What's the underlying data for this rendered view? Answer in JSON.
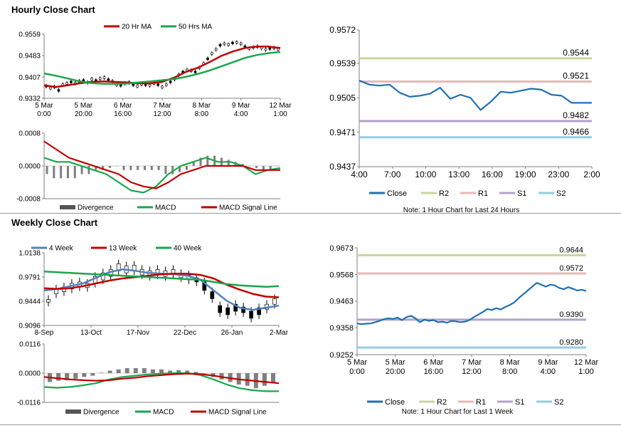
{
  "sections": {
    "hourly_title": "Hourly Close Chart",
    "weekly_title": "Weekly Close Chart"
  },
  "chart_data": [
    {
      "id": "hourly-price",
      "type": "line",
      "legend": [
        "20 Hr MA",
        "50 Hrs MA"
      ],
      "legend_colors": [
        "#c00000",
        "#19a64c"
      ],
      "ylim": [
        0.9332,
        0.9559
      ],
      "y_ticks": [
        "0.9559",
        "0.9483",
        "0.9407",
        "0.9332"
      ],
      "x_ticks": [
        [
          "5 Mar",
          "0:00"
        ],
        [
          "5 Mar",
          "20:00"
        ],
        [
          "6 Mar",
          "16:00"
        ],
        [
          "7 Mar",
          "12:00"
        ],
        [
          "8 Mar",
          "8:00"
        ],
        [
          "9 Mar",
          "4:00"
        ],
        [
          "12 Mar",
          "1:00"
        ]
      ],
      "candles": [
        0.9375,
        0.9368,
        0.9372,
        0.936,
        0.938,
        0.9385,
        0.939,
        0.9385,
        0.9392,
        0.9395,
        0.9388,
        0.94,
        0.9395,
        0.9402,
        0.9405,
        0.9398,
        0.9392,
        0.938,
        0.9378,
        0.9385,
        0.9388,
        0.938,
        0.9375,
        0.9382,
        0.938,
        0.9378,
        0.9385,
        0.938,
        0.9372,
        0.938,
        0.939,
        0.94,
        0.9415,
        0.9425,
        0.9432,
        0.943,
        0.9425,
        0.944,
        0.9455,
        0.9472,
        0.949,
        0.9505,
        0.952,
        0.9525,
        0.9522,
        0.9528,
        0.953,
        0.9525,
        0.9515,
        0.9508,
        0.9512,
        0.9515,
        0.951,
        0.9505,
        0.9508,
        0.951,
        0.9505
      ],
      "series": [
        {
          "name": "20 Hr MA",
          "color": "#c00000",
          "values": [
            0.9378,
            0.9372,
            0.9378,
            0.9385,
            0.939,
            0.9392,
            0.939,
            0.9388,
            0.9385,
            0.9385,
            0.939,
            0.9405,
            0.9425,
            0.944,
            0.946,
            0.9482,
            0.9498,
            0.951,
            0.9515,
            0.9515,
            0.951
          ]
        },
        {
          "name": "50 Hrs MA",
          "color": "#19a64c",
          "values": [
            0.942,
            0.9412,
            0.9402,
            0.9392,
            0.9386,
            0.9383,
            0.9383,
            0.9384,
            0.9388,
            0.9392,
            0.9396,
            0.94,
            0.9408,
            0.9418,
            0.943,
            0.9445,
            0.946,
            0.9475,
            0.9485,
            0.9492,
            0.9496
          ]
        }
      ]
    },
    {
      "id": "hourly-macd",
      "type": "line",
      "ylim": [
        -0.0008,
        0.0008
      ],
      "y_ticks": [
        "0.0008",
        "0.0000",
        "-0.0008"
      ],
      "legend": [
        "Divergence",
        "MACD",
        "MACD Signal Line"
      ],
      "legend_colors": [
        "#555555",
        "#19a64c",
        "#c00000"
      ],
      "divergence": [
        -0.0002,
        -0.0003,
        -0.0003,
        -0.0003,
        -0.0003,
        -0.0002,
        -0.0002,
        -0.0001,
        -0.0001,
        -5e-05,
        0.0,
        -0.0001,
        -0.0001,
        -0.0001,
        -0.0001,
        -0.0001,
        -0.0001,
        -0.0002,
        -0.0002,
        -0.00015,
        -0.0001,
        0.0001,
        0.0002,
        0.00025,
        0.00025,
        0.0002,
        0.00015,
        0.0001,
        5e-05,
        0.0,
        -5e-05,
        -0.0001,
        -0.0001,
        0.0
      ],
      "series": [
        {
          "name": "MACD",
          "color": "#19a64c",
          "values": [
            0.0002,
            0.0001,
            0.0001,
            0.0,
            -0.0001,
            -0.0002,
            -0.0004,
            -0.0006,
            -0.00065,
            -0.0005,
            -0.0002,
            0.0,
            0.0001,
            0.0002,
            0.0001,
            0.0001,
            0.0,
            -0.0002,
            -0.0001,
            -5e-05
          ]
        },
        {
          "name": "MACD Signal Line",
          "color": "#c00000",
          "values": [
            0.0006,
            0.0004,
            0.0002,
            0.0001,
            0.0,
            -0.0001,
            -0.0002,
            -0.0004,
            -0.0005,
            -0.00055,
            -0.0004,
            -0.0002,
            -0.0001,
            0.0,
            0.0,
            0.0,
            0.0,
            -0.0001,
            -0.0001,
            -0.0001
          ]
        }
      ]
    },
    {
      "id": "hourly-close-24h",
      "type": "line",
      "ylim": [
        0.9437,
        0.9572
      ],
      "y_ticks": [
        "0.9572",
        "0.9539",
        "0.9505",
        "0.9471",
        "0.9437"
      ],
      "x_ticks": [
        "4:00",
        "7:00",
        "10:00",
        "13:00",
        "16:00",
        "19:00",
        "23:00",
        "2:00"
      ],
      "levels": [
        {
          "name": "R2",
          "value": 0.9544,
          "label": "0.9544",
          "color": "#c4d79b"
        },
        {
          "name": "R1",
          "value": 0.9521,
          "label": "0.9521",
          "color": "#e6b9b8"
        },
        {
          "name": "S1",
          "value": 0.9482,
          "label": "0.9482",
          "color": "#b3a2c7"
        },
        {
          "name": "S2",
          "value": 0.9466,
          "label": "0.9466",
          "color": "#93cddd"
        }
      ],
      "series": [
        {
          "name": "Close",
          "color": "#1f6fb4",
          "values": [
            0.9522,
            0.9518,
            0.9517,
            0.9518,
            0.951,
            0.9506,
            0.9507,
            0.9509,
            0.9515,
            0.9504,
            0.9508,
            0.9505,
            0.9493,
            0.9501,
            0.9511,
            0.951,
            0.9512,
            0.9514,
            0.9513,
            0.9508,
            0.9507,
            0.95,
            0.95,
            0.95
          ]
        }
      ],
      "legend": [
        "Close",
        "R2",
        "R1",
        "S1",
        "S2"
      ],
      "note": "Note: 1 Hour Chart for Last 24 Hours"
    },
    {
      "id": "weekly-price",
      "type": "line",
      "legend": [
        "4 Week",
        "13 Week",
        "40 Week"
      ],
      "legend_colors": [
        "#4f81bd",
        "#c00000",
        "#19a64c"
      ],
      "ylim": [
        0.9096,
        1.0138
      ],
      "y_ticks": [
        "1.0138",
        "0.9791",
        "0.9444",
        "0.9096"
      ],
      "x_ticks": [
        "8-Sep",
        "13-Oct",
        "17-Nov",
        "22-Dec",
        "26-Jan",
        "2-Mar"
      ],
      "candles": [
        [
          0.943,
          0.947
        ],
        [
          0.955,
          0.962
        ],
        [
          0.958,
          0.965
        ],
        [
          0.962,
          0.97
        ],
        [
          0.965,
          0.972
        ],
        [
          0.964,
          0.97
        ],
        [
          0.97,
          0.98
        ],
        [
          0.975,
          0.985
        ],
        [
          0.98,
          0.99
        ],
        [
          0.988,
          0.998
        ],
        [
          0.985,
          0.995
        ],
        [
          0.988,
          0.996
        ],
        [
          0.982,
          0.99
        ],
        [
          0.98,
          0.988
        ],
        [
          0.982,
          0.99
        ],
        [
          0.98,
          0.988
        ],
        [
          0.984,
          0.99
        ],
        [
          0.978,
          0.984
        ],
        [
          0.975,
          0.982
        ],
        [
          0.972,
          0.978
        ],
        [
          0.96,
          0.972
        ],
        [
          0.948,
          0.958
        ],
        [
          0.928,
          0.938
        ],
        [
          0.925,
          0.935
        ],
        [
          0.93,
          0.94
        ],
        [
          0.928,
          0.936
        ],
        [
          0.92,
          0.93
        ],
        [
          0.925,
          0.935
        ],
        [
          0.933,
          0.94
        ],
        [
          0.94,
          0.948
        ]
      ],
      "series": [
        {
          "name": "4 Week",
          "color": "#4f81bd",
          "values": [
            0.96,
            0.962,
            0.966,
            0.97,
            0.978,
            0.986,
            0.99,
            0.988,
            0.985,
            0.984,
            0.983,
            0.981,
            0.975,
            0.96,
            0.945,
            0.935,
            0.932,
            0.935,
            0.938
          ]
        },
        {
          "name": "13 Week",
          "color": "#c00000",
          "values": [
            0.963,
            0.962,
            0.963,
            0.966,
            0.97,
            0.974,
            0.977,
            0.979,
            0.981,
            0.983,
            0.984,
            0.984,
            0.982,
            0.977,
            0.968,
            0.961,
            0.955,
            0.951,
            0.95
          ]
        },
        {
          "name": "40 Week",
          "color": "#19a64c",
          "values": [
            0.987,
            0.986,
            0.985,
            0.984,
            0.983,
            0.982,
            0.981,
            0.98,
            0.979,
            0.978,
            0.977,
            0.976,
            0.975,
            0.972,
            0.969,
            0.967,
            0.966,
            0.965,
            0.966
          ]
        }
      ]
    },
    {
      "id": "weekly-macd",
      "type": "line",
      "ylim": [
        -0.0116,
        0.0116
      ],
      "y_ticks": [
        "0.0116",
        "0.0000",
        "-0.0116"
      ],
      "legend": [
        "Divergence",
        "MACD",
        "MACD Signal Line"
      ],
      "legend_colors": [
        "#555555",
        "#19a64c",
        "#c00000"
      ],
      "divergence": [
        -0.0035,
        -0.003,
        -0.0028,
        -0.0022,
        -0.0015,
        -0.001,
        0.0002,
        0.001,
        0.0015,
        0.002,
        0.002,
        0.002,
        0.0015,
        0.0015,
        0.001,
        0.0012,
        0.001,
        0.0005,
        0.0,
        -0.0015,
        -0.0025,
        -0.0035,
        -0.0045,
        -0.005,
        -0.006,
        -0.005,
        -0.004
      ],
      "series": [
        {
          "name": "MACD",
          "color": "#19a64c",
          "values": [
            -0.0055,
            -0.0058,
            -0.0055,
            -0.0048,
            -0.004,
            -0.0025,
            -0.0015,
            -0.001,
            -0.0005,
            -0.0002,
            0.0,
            0.0,
            -0.0008,
            -0.0025,
            -0.0045,
            -0.006,
            -0.0068,
            -0.0072,
            -0.0072
          ]
        },
        {
          "name": "MACD Signal Line",
          "color": "#c00000",
          "values": [
            -0.0015,
            -0.002,
            -0.0025,
            -0.0028,
            -0.003,
            -0.0028,
            -0.0022,
            -0.0018,
            -0.0012,
            -0.0008,
            -0.0004,
            -0.0002,
            -0.0004,
            -0.001,
            -0.0018,
            -0.0025,
            -0.003,
            -0.0035,
            -0.004
          ]
        }
      ]
    },
    {
      "id": "weekly-close-1w",
      "type": "line",
      "ylim": [
        0.9252,
        0.9673
      ],
      "y_ticks": [
        "0.9673",
        "0.9568",
        "0.9463",
        "0.9358",
        "0.9252"
      ],
      "x_ticks": [
        [
          "5 Mar",
          "0:00"
        ],
        [
          "5 Mar",
          "20:00"
        ],
        [
          "6 Mar",
          "16:00"
        ],
        [
          "7 Mar",
          "12:00"
        ],
        [
          "8 Mar",
          "8:00"
        ],
        [
          "9 Mar",
          "4:00"
        ],
        [
          "12 Mar",
          "1:00"
        ]
      ],
      "levels": [
        {
          "name": "R2",
          "value": 0.9644,
          "label": "0.9644",
          "color": "#c4d79b"
        },
        {
          "name": "R1",
          "value": 0.9572,
          "label": "0.9572",
          "color": "#e6b9b8"
        },
        {
          "name": "S1",
          "value": 0.939,
          "label": "0.9390",
          "color": "#b3a2c7"
        },
        {
          "name": "S2",
          "value": 0.928,
          "label": "0.9280",
          "color": "#93cddd"
        }
      ],
      "series": [
        {
          "name": "Close",
          "color": "#1f6fb4",
          "values": [
            0.9375,
            0.9372,
            0.9374,
            0.9375,
            0.938,
            0.9385,
            0.9392,
            0.9395,
            0.9393,
            0.9398,
            0.9388,
            0.94,
            0.9405,
            0.9395,
            0.938,
            0.939,
            0.9385,
            0.9388,
            0.938,
            0.9382,
            0.9378,
            0.9385,
            0.9383,
            0.938,
            0.9382,
            0.9388,
            0.94,
            0.941,
            0.942,
            0.9432,
            0.9428,
            0.9435,
            0.943,
            0.944,
            0.9448,
            0.9458,
            0.9475,
            0.949,
            0.9505,
            0.952,
            0.9535,
            0.9528,
            0.952,
            0.9528,
            0.9525,
            0.9515,
            0.951,
            0.9518,
            0.9512,
            0.9505,
            0.9508,
            0.9503
          ]
        }
      ],
      "legend": [
        "Close",
        "R2",
        "R1",
        "S1",
        "S2"
      ],
      "note": "Note: 1 Hour Chart for Last 1 Week"
    }
  ]
}
